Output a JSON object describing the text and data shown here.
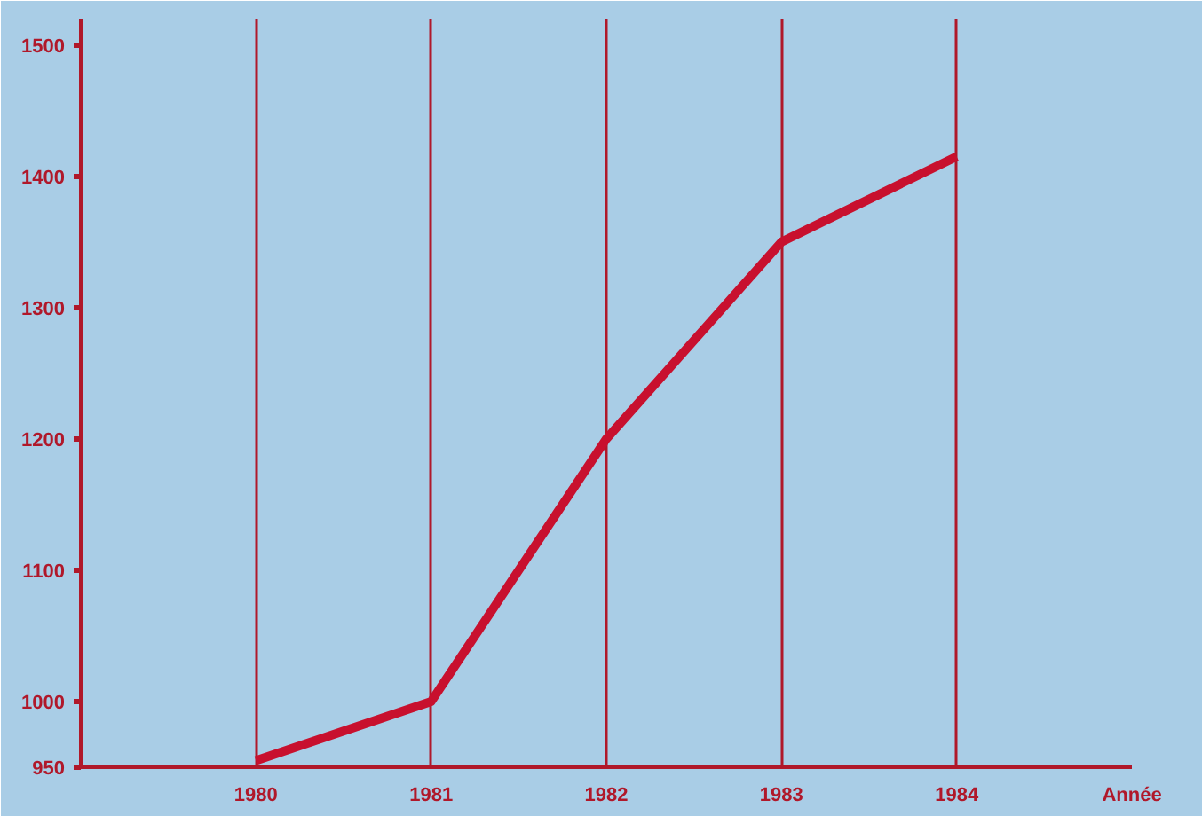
{
  "chart_data": {
    "type": "line",
    "x": [
      1980,
      1981,
      1982,
      1983,
      1984
    ],
    "series": [
      {
        "color": "#c8102e",
        "values": [
          955,
          1000,
          1200,
          1350,
          1415
        ]
      }
    ],
    "xlabel": "Année",
    "xlim": [
      1979,
      1985
    ],
    "xticks": [
      1980,
      1981,
      1982,
      1983,
      1984
    ],
    "ylim": [
      950,
      1520
    ],
    "yticks": [
      950,
      1000,
      1100,
      1200,
      1300,
      1400,
      1500
    ],
    "grid": "x",
    "marker": "none",
    "line_style": "solid"
  }
}
